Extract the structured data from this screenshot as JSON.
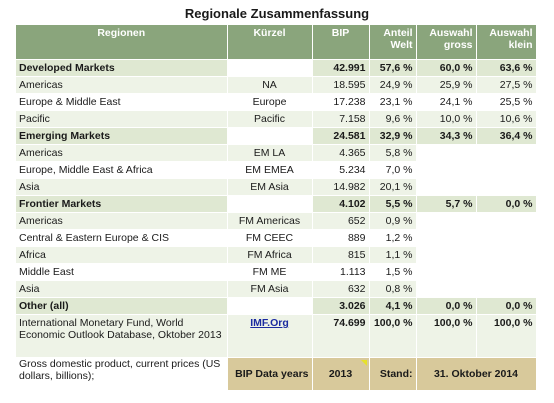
{
  "title": "Regionale Zusammenfassung",
  "headers": {
    "region": "Regionen",
    "code": "Kürzel",
    "bip": "BIP",
    "share": "Anteil Welt",
    "sel_large": "Auswahl gross",
    "sel_small": "Auswahl klein"
  },
  "rows": [
    {
      "type": "group",
      "name": "Developed Markets",
      "code": "",
      "bip": "42.991",
      "share": "57,6 %",
      "large": "60,0 %",
      "small": "63,6 %"
    },
    {
      "type": "a",
      "name": "Americas",
      "code": "NA",
      "bip": "18.595",
      "share": "24,9 %",
      "large": "25,9 %",
      "small": "27,5 %"
    },
    {
      "type": "b",
      "name": "Europe & Middle East",
      "code": "Europe",
      "bip": "17.238",
      "share": "23,1 %",
      "large": "24,1 %",
      "small": "25,5 %"
    },
    {
      "type": "a",
      "name": "Pacific",
      "code": "Pacific",
      "bip": "7.158",
      "share": "9,6 %",
      "large": "10,0 %",
      "small": "10,6 %"
    },
    {
      "type": "group",
      "name": "Emerging Markets",
      "code": "",
      "bip": "24.581",
      "share": "32,9 %",
      "large": "34,3 %",
      "small": "36,4 %"
    },
    {
      "type": "a",
      "name": "Americas",
      "code": "EM LA",
      "bip": "4.365",
      "share": "5,8 %",
      "large": "",
      "small": ""
    },
    {
      "type": "b",
      "name": "Europe, Middle East & Africa",
      "code": "EM EMEA",
      "bip": "5.234",
      "share": "7,0 %",
      "large": "",
      "small": ""
    },
    {
      "type": "a",
      "name": "Asia",
      "code": "EM Asia",
      "bip": "14.982",
      "share": "20,1 %",
      "large": "",
      "small": ""
    },
    {
      "type": "group",
      "name": "Frontier Markets",
      "code": "",
      "bip": "4.102",
      "share": "5,5 %",
      "large": "5,7 %",
      "small": "0,0 %"
    },
    {
      "type": "a",
      "name": "Americas",
      "code": "FM Americas",
      "bip": "652",
      "share": "0,9 %",
      "large": "",
      "small": ""
    },
    {
      "type": "b",
      "name": "Central & Eastern Europe & CIS",
      "code": "FM CEEC",
      "bip": "889",
      "share": "1,2 %",
      "large": "",
      "small": ""
    },
    {
      "type": "a",
      "name": "Africa",
      "code": "FM Africa",
      "bip": "815",
      "share": "1,1 %",
      "large": "",
      "small": ""
    },
    {
      "type": "b",
      "name": "Middle East",
      "code": "FM ME",
      "bip": "1.113",
      "share": "1,5 %",
      "large": "",
      "small": ""
    },
    {
      "type": "a",
      "name": "Asia",
      "code": "FM Asia",
      "bip": "632",
      "share": "0,8 %",
      "large": "",
      "small": ""
    },
    {
      "type": "group",
      "name": "Other (all)",
      "code": "",
      "bip": "3.026",
      "share": "4,1 %",
      "large": "0,0 %",
      "small": "0,0 %"
    }
  ],
  "source": {
    "text": "International Monetary Fund, World Economic Outlook Database, Oktober 2013",
    "link": "IMF.Org",
    "bip": "74.699",
    "share": "100,0 %",
    "large": "100,0 %",
    "small": "100,0 %"
  },
  "footer": {
    "text": "Gross domestic product, current prices (US dollars, billions);",
    "bip_years_label": "BIP Data years",
    "year": "2013",
    "stand_label": "Stand:",
    "stand_date": "31. Oktober 2014"
  },
  "colors": {
    "header_bg": "#8aa57c",
    "group_bg": "#dfe8d2",
    "alt_row_bg": "#eef3e7",
    "footer_bg": "#d8c99b",
    "link": "#1a2aa0"
  }
}
